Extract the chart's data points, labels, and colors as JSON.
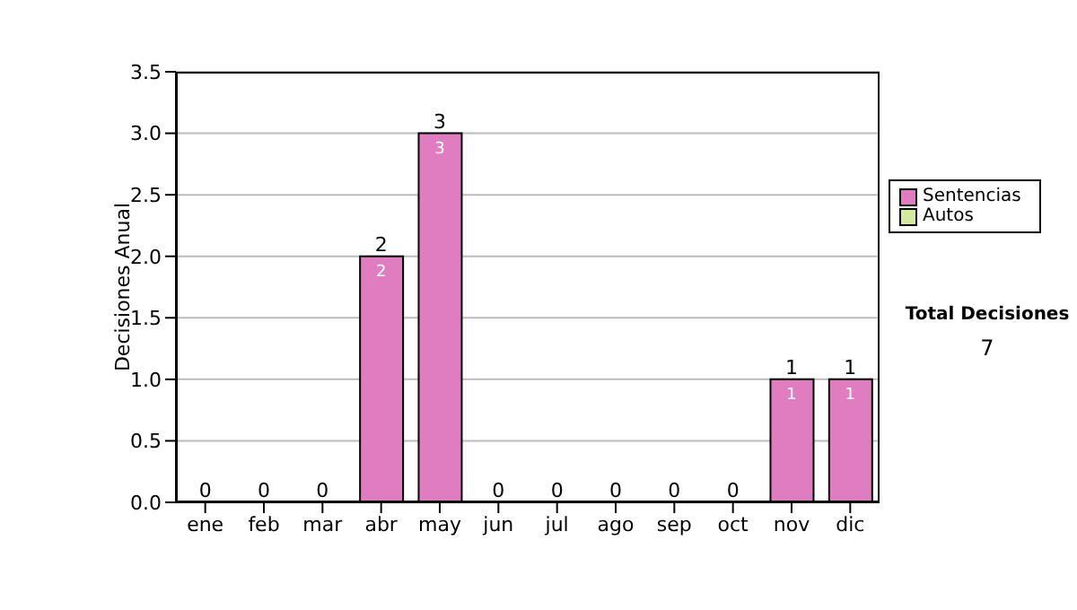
{
  "chart_data": {
    "type": "bar",
    "ylabel": "Decisiones Anual",
    "categories": [
      "ene",
      "feb",
      "mar",
      "abr",
      "may",
      "jun",
      "jul",
      "ago",
      "sep",
      "oct",
      "nov",
      "dic"
    ],
    "series": [
      {
        "name": "Sentencias",
        "color": "#e07cc0",
        "values": [
          0,
          0,
          0,
          2,
          3,
          0,
          0,
          0,
          0,
          0,
          1,
          1
        ],
        "value_labels": [
          null,
          null,
          null,
          "2",
          "3",
          null,
          null,
          null,
          null,
          null,
          "1",
          "1"
        ]
      },
      {
        "name": "Autos",
        "color": "#d4e8a0",
        "values": [
          0,
          0,
          0,
          0,
          0,
          0,
          0,
          0,
          0,
          0,
          0,
          0
        ]
      }
    ],
    "stacked": true,
    "totals": [
      "0",
      "0",
      "0",
      "2",
      "3",
      "0",
      "0",
      "0",
      "0",
      "0",
      "1",
      "1"
    ],
    "ylim": [
      0,
      3.5
    ],
    "yticks": [
      {
        "value": 0,
        "label": "0.0"
      },
      {
        "value": 0.5,
        "label": "0.5"
      },
      {
        "value": 1,
        "label": "1.0"
      },
      {
        "value": 1.5,
        "label": "1.5"
      },
      {
        "value": 2,
        "label": "2.0"
      },
      {
        "value": 2.5,
        "label": "2.5"
      },
      {
        "value": 3,
        "label": "3.0"
      },
      {
        "value": 3.5,
        "label": "3.5"
      }
    ],
    "grid": "y",
    "legend": "right",
    "annotations": [
      "Total Decisiones",
      "7"
    ]
  }
}
